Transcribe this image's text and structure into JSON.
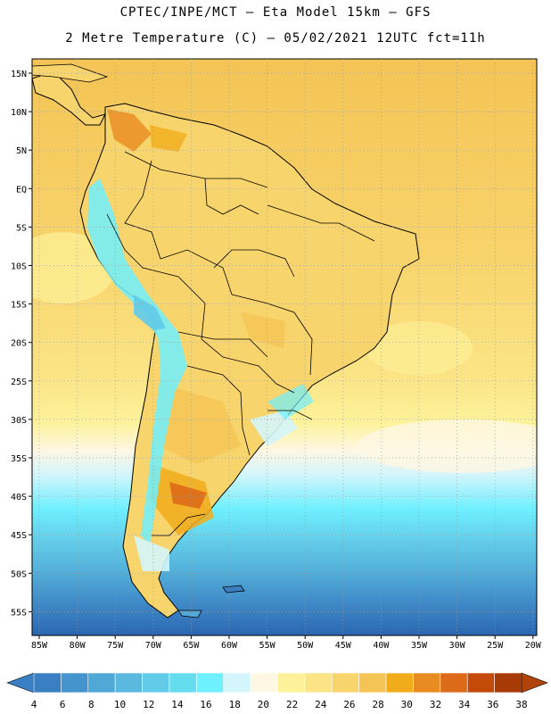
{
  "title_line1": "CPTEC/INPE/MCT –  Eta Model 15km – GFS",
  "title_line2": "2 Metre Temperature (C) – 05/02/2021 12UTC fct=11h",
  "lat_labels": [
    "15N",
    "10N",
    "5N",
    "EQ",
    "5S",
    "10S",
    "15S",
    "20S",
    "25S",
    "30S",
    "35S",
    "40S",
    "45S",
    "50S",
    "55S"
  ],
  "lon_labels": [
    "85W",
    "80W",
    "75W",
    "70W",
    "65W",
    "60W",
    "55W",
    "50W",
    "45W",
    "40W",
    "35W",
    "30W",
    "25W",
    "20W"
  ],
  "colorbar": {
    "ticks": [
      "4",
      "6",
      "8",
      "10",
      "12",
      "14",
      "16",
      "18",
      "20",
      "22",
      "24",
      "26",
      "28",
      "30",
      "32",
      "34",
      "36",
      "38"
    ],
    "colors": [
      "#3a7fc2",
      "#4594cd",
      "#4fa8d6",
      "#5ab9df",
      "#62cbe8",
      "#66dcef",
      "#6ff0ff",
      "#d4f5fb",
      "#fef7e4",
      "#fdf29a",
      "#fbe486",
      "#f8d46c",
      "#f4c455",
      "#f1ac1b",
      "#e88b20",
      "#dd6a18",
      "#c34a08",
      "#a83a06"
    ],
    "low_color": "#3a7fc2",
    "high_color": "#b0430a"
  }
}
